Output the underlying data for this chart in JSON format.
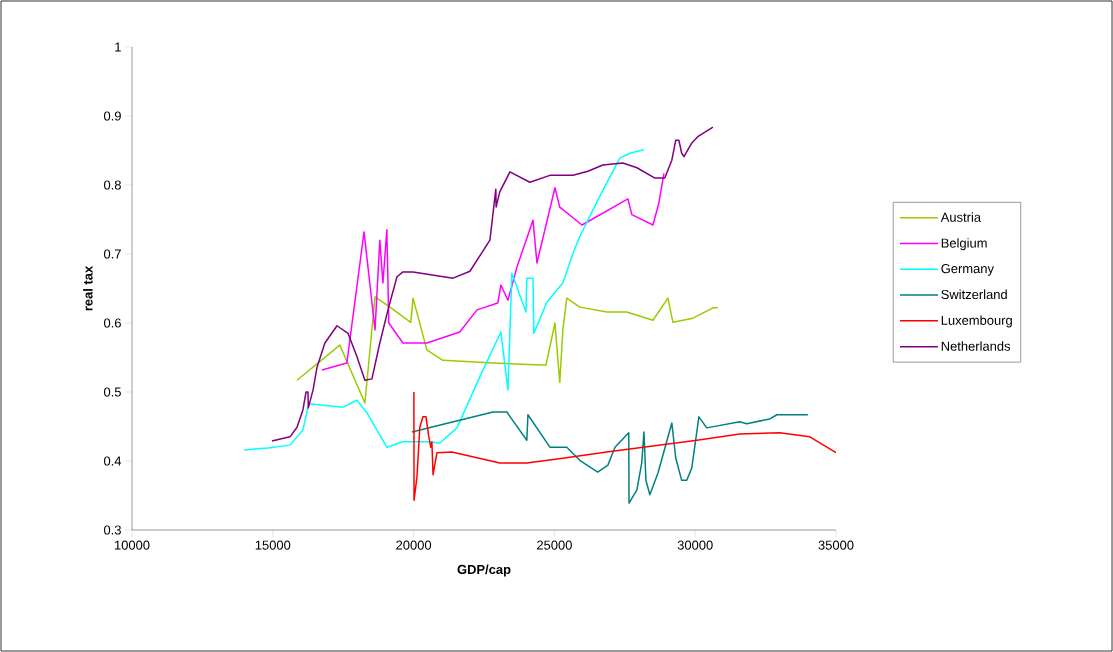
{
  "chart_data": {
    "type": "line",
    "xlabel": "GDP/cap",
    "ylabel": "real tax",
    "xlim": [
      10000,
      35000
    ],
    "ylim": [
      0.3,
      1
    ],
    "xticks": [
      10000,
      15000,
      20000,
      25000,
      30000,
      35000
    ],
    "yticks": [
      0.3,
      0.4,
      0.5,
      0.6,
      0.7,
      0.8,
      0.9,
      1
    ],
    "legend": "right",
    "series": [
      {
        "name": "Austria",
        "color": "#99cc00",
        "x": [
          15860,
          17380,
          18270,
          18630,
          19160,
          19900,
          19980,
          20470,
          21040,
          22820,
          24590,
          24700,
          25020,
          25190,
          25300,
          25440,
          25900,
          26860,
          27570,
          28500,
          29030,
          29210,
          29920,
          30630,
          30800
        ],
        "values": [
          0.517,
          0.568,
          0.484,
          0.638,
          0.623,
          0.601,
          0.636,
          0.561,
          0.546,
          0.542,
          0.539,
          0.539,
          0.6,
          0.514,
          0.59,
          0.636,
          0.623,
          0.616,
          0.616,
          0.604,
          0.636,
          0.601,
          0.607,
          0.622,
          0.622
        ]
      },
      {
        "name": "Belgium",
        "color": "#ff00ff",
        "x": [
          16745,
          17630,
          18240,
          18630,
          18800,
          18910,
          19050,
          19120,
          19620,
          20470,
          21640,
          22250,
          22990,
          23100,
          23350,
          23670,
          24240,
          24380,
          25020,
          25190,
          25980,
          27610,
          27750,
          28500,
          28710,
          28890
        ],
        "values": [
          0.532,
          0.542,
          0.732,
          0.59,
          0.72,
          0.658,
          0.735,
          0.6,
          0.571,
          0.571,
          0.587,
          0.619,
          0.629,
          0.655,
          0.633,
          0.681,
          0.749,
          0.687,
          0.796,
          0.768,
          0.742,
          0.78,
          0.757,
          0.742,
          0.774,
          0.817
        ]
      },
      {
        "name": "Germany",
        "color": "#00ffff",
        "x": [
          13980,
          14830,
          15610,
          16070,
          16280,
          17490,
          17990,
          18340,
          19050,
          19620,
          20470,
          20930,
          21540,
          22350,
          23100,
          23350,
          23490,
          23990,
          24020,
          24240,
          24270,
          24730,
          25300,
          25660,
          25900,
          26540,
          27320,
          27680,
          28180
        ],
        "values": [
          0.416,
          0.419,
          0.423,
          0.445,
          0.483,
          0.478,
          0.488,
          0.47,
          0.42,
          0.428,
          0.428,
          0.426,
          0.448,
          0.522,
          0.587,
          0.503,
          0.672,
          0.616,
          0.665,
          0.665,
          0.585,
          0.63,
          0.658,
          0.701,
          0.725,
          0.778,
          0.839,
          0.846,
          0.851
        ]
      },
      {
        "name": "Switzerland",
        "color": "#008080",
        "x": [
          19940,
          22820,
          23310,
          24020,
          24060,
          24840,
          25440,
          25900,
          26540,
          26900,
          27150,
          27640,
          27650,
          27930,
          28100,
          28180,
          28250,
          28390,
          28680,
          29170,
          29310,
          29520,
          29700,
          29880,
          30130,
          30410,
          31580,
          31830,
          32650,
          32900,
          34000
        ],
        "values": [
          0.442,
          0.471,
          0.471,
          0.43,
          0.467,
          0.42,
          0.42,
          0.401,
          0.384,
          0.394,
          0.42,
          0.441,
          0.339,
          0.358,
          0.397,
          0.442,
          0.372,
          0.351,
          0.383,
          0.455,
          0.404,
          0.372,
          0.372,
          0.39,
          0.464,
          0.448,
          0.457,
          0.454,
          0.461,
          0.467,
          0.467
        ]
      },
      {
        "name": "Luxembourg",
        "color": "#ff0000",
        "x": [
          20010,
          20015,
          20120,
          20220,
          20330,
          20440,
          20540,
          20610,
          20650,
          20690,
          20830,
          21360,
          23060,
          24020,
          25300,
          26860,
          30060,
          31580,
          33000,
          34070,
          35000
        ],
        "values": [
          0.5,
          0.343,
          0.377,
          0.449,
          0.464,
          0.464,
          0.435,
          0.42,
          0.428,
          0.38,
          0.412,
          0.413,
          0.397,
          0.397,
          0.404,
          0.413,
          0.43,
          0.439,
          0.441,
          0.435,
          0.412
        ]
      },
      {
        "name": "Netherlands",
        "color": "#800080",
        "x": [
          14970,
          15610,
          15860,
          16070,
          16180,
          16250,
          16260,
          16430,
          16570,
          16850,
          17280,
          17670,
          17990,
          18270,
          18520,
          18800,
          19090,
          19410,
          19620,
          19980,
          21400,
          22000,
          22710,
          22920,
          22930,
          23060,
          23420,
          24130,
          24840,
          25660,
          26190,
          26720,
          27430,
          27930,
          28570,
          28920,
          29170,
          29310,
          29420,
          29520,
          29600,
          29880,
          30090,
          30630
        ],
        "values": [
          0.429,
          0.435,
          0.449,
          0.474,
          0.5,
          0.5,
          0.477,
          0.503,
          0.536,
          0.571,
          0.596,
          0.585,
          0.551,
          0.517,
          0.519,
          0.571,
          0.619,
          0.667,
          0.674,
          0.674,
          0.665,
          0.675,
          0.72,
          0.794,
          0.768,
          0.79,
          0.819,
          0.804,
          0.814,
          0.814,
          0.82,
          0.829,
          0.832,
          0.825,
          0.81,
          0.81,
          0.836,
          0.865,
          0.865,
          0.846,
          0.841,
          0.861,
          0.87,
          0.884
        ]
      }
    ]
  }
}
